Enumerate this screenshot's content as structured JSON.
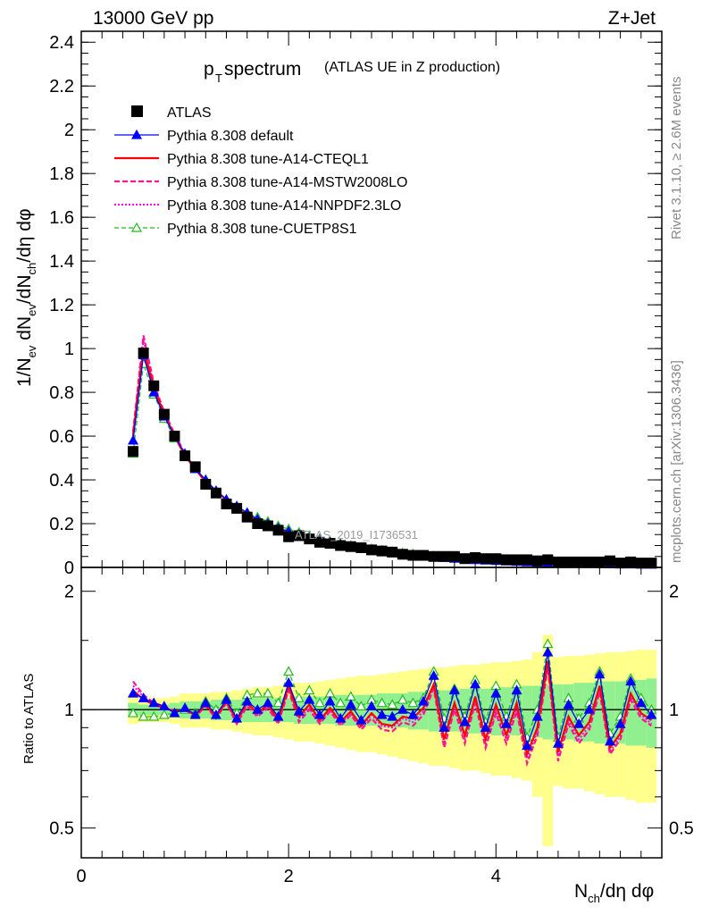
{
  "header": {
    "left": "13000 GeV pp",
    "right": "Z+Jet"
  },
  "title": {
    "main": "p",
    "main_sub": "T",
    "main_rest": " spectrum",
    "paren": "(ATLAS UE in Z production)"
  },
  "side_labels": {
    "rivet": "Rivet 3.1.10, ≥ 2.6M events",
    "mcplots": "mcplots.cern.ch [arXiv:1306.3436]"
  },
  "watermark": "ATLAS_2019_I1736531",
  "axes": {
    "main_ylabel": "1/N_ev dN_ev/dN_ch/dη dφ",
    "ratio_ylabel": "Ratio to ATLAS",
    "xlabel": "N_ch/dη dφ"
  },
  "legend": [
    {
      "label": "ATLAS",
      "color": "#000000",
      "style": "data"
    },
    {
      "label": "Pythia 8.308 default",
      "color": "#0000ff",
      "style": "solid-triangle"
    },
    {
      "label": "Pythia 8.308 tune-A14-CTEQL1",
      "color": "#ff0000",
      "style": "solid-thick"
    },
    {
      "label": "Pythia 8.308 tune-A14-MSTW2008LO",
      "color": "#ff1493",
      "style": "dashed"
    },
    {
      "label": "Pythia 8.308 tune-A14-NNPDF2.3LO",
      "color": "#ff00ff",
      "style": "dotted"
    },
    {
      "label": "Pythia 8.308 tune-CUETP8S1",
      "color": "#22bb22",
      "style": "dashed-open-triangle"
    }
  ],
  "chart_data": {
    "type": "line",
    "x": [
      0.5,
      0.6,
      0.7,
      0.8,
      0.9,
      1.0,
      1.1,
      1.2,
      1.3,
      1.4,
      1.5,
      1.6,
      1.7,
      1.8,
      1.9,
      2.0,
      2.1,
      2.2,
      2.3,
      2.4,
      2.5,
      2.6,
      2.7,
      2.8,
      2.9,
      3.0,
      3.1,
      3.2,
      3.3,
      3.4,
      3.5,
      3.6,
      3.7,
      3.8,
      3.9,
      4.0,
      4.1,
      4.2,
      4.3,
      4.4,
      4.5,
      4.6,
      4.7,
      4.8,
      4.9,
      5.0,
      5.1,
      5.2,
      5.3,
      5.4,
      5.5
    ],
    "xlim": [
      0,
      5.6
    ],
    "main": {
      "ylim": [
        0,
        2.45
      ],
      "yticks": [
        "0",
        "0.2",
        "0.4",
        "0.6",
        "0.8",
        "1",
        "1.2",
        "1.4",
        "1.6",
        "1.8",
        "2",
        "2.2",
        "2.4"
      ],
      "ytick_values": [
        0,
        0.2,
        0.4,
        0.6,
        0.8,
        1,
        1.2,
        1.4,
        1.6,
        1.8,
        2,
        2.2,
        2.4
      ],
      "data": [
        0.53,
        0.98,
        0.83,
        0.7,
        0.6,
        0.51,
        0.46,
        0.38,
        0.34,
        0.29,
        0.27,
        0.23,
        0.2,
        0.19,
        0.17,
        0.14,
        0.145,
        0.13,
        0.115,
        0.11,
        0.1,
        0.095,
        0.09,
        0.08,
        0.075,
        0.07,
        0.06,
        0.055,
        0.055,
        0.05,
        0.05,
        0.05,
        0.04,
        0.045,
        0.04,
        0.04,
        0.035,
        0.035,
        0.035,
        0.03,
        0.035,
        0.025,
        0.025,
        0.025,
        0.025,
        0.025,
        0.03,
        0.02,
        0.025,
        0.02,
        0.02
      ],
      "default": [
        0.58,
        0.97,
        0.8,
        0.69,
        0.6,
        0.52,
        0.45,
        0.4,
        0.35,
        0.31,
        0.28,
        0.25,
        0.22,
        0.2,
        0.18,
        0.165,
        0.15,
        0.135,
        0.125,
        0.115,
        0.105,
        0.095,
        0.087,
        0.08,
        0.073,
        0.067,
        0.061,
        0.056,
        0.052,
        0.048,
        0.044,
        0.04,
        0.037,
        0.034,
        0.032,
        0.03,
        0.028,
        0.026,
        0.024,
        0.022,
        0.021,
        0.02,
        0.019,
        0.018,
        0.017,
        0.016,
        0.015,
        0.014,
        0.014,
        0.013,
        0.013
      ],
      "a14_cteql1": [
        0.6,
        1.0,
        0.82,
        0.7,
        0.6,
        0.51,
        0.45,
        0.39,
        0.35,
        0.31,
        0.27,
        0.24,
        0.22,
        0.2,
        0.18,
        0.16,
        0.145,
        0.13,
        0.12,
        0.11,
        0.1,
        0.092,
        0.084,
        0.077,
        0.07,
        0.064,
        0.059,
        0.054,
        0.05,
        0.046,
        0.042,
        0.039,
        0.036,
        0.033,
        0.031,
        0.029,
        0.027,
        0.025,
        0.023,
        0.021,
        0.02,
        0.019,
        0.018,
        0.017,
        0.016,
        0.015,
        0.014,
        0.013,
        0.013,
        0.012,
        0.012
      ],
      "a14_mstw2008lo": [
        0.62,
        1.06,
        0.84,
        0.71,
        0.61,
        0.52,
        0.45,
        0.39,
        0.34,
        0.3,
        0.27,
        0.24,
        0.21,
        0.19,
        0.17,
        0.155,
        0.14,
        0.125,
        0.115,
        0.105,
        0.096,
        0.088,
        0.08,
        0.073,
        0.067,
        0.061,
        0.056,
        0.051,
        0.047,
        0.043,
        0.04,
        0.037,
        0.034,
        0.031,
        0.029,
        0.027,
        0.025,
        0.023,
        0.022,
        0.02,
        0.019,
        0.018,
        0.017,
        0.016,
        0.015,
        0.014,
        0.013,
        0.012,
        0.012,
        0.011,
        0.011
      ],
      "a14_nnpdf23lo": [
        0.61,
        1.04,
        0.83,
        0.7,
        0.6,
        0.52,
        0.45,
        0.39,
        0.35,
        0.3,
        0.27,
        0.24,
        0.21,
        0.19,
        0.17,
        0.158,
        0.142,
        0.128,
        0.117,
        0.107,
        0.098,
        0.09,
        0.082,
        0.075,
        0.069,
        0.063,
        0.058,
        0.053,
        0.049,
        0.045,
        0.041,
        0.038,
        0.035,
        0.032,
        0.03,
        0.028,
        0.026,
        0.024,
        0.022,
        0.021,
        0.02,
        0.019,
        0.018,
        0.017,
        0.016,
        0.015,
        0.014,
        0.013,
        0.013,
        0.012,
        0.012
      ],
      "cuetp8s1": [
        0.52,
        0.93,
        0.79,
        0.68,
        0.59,
        0.51,
        0.45,
        0.4,
        0.35,
        0.31,
        0.28,
        0.25,
        0.23,
        0.21,
        0.19,
        0.175,
        0.16,
        0.145,
        0.132,
        0.12,
        0.11,
        0.1,
        0.092,
        0.085,
        0.078,
        0.072,
        0.066,
        0.061,
        0.056,
        0.052,
        0.048,
        0.044,
        0.041,
        0.038,
        0.035,
        0.033,
        0.031,
        0.029,
        0.027,
        0.025,
        0.023,
        0.022,
        0.021,
        0.02,
        0.019,
        0.018,
        0.017,
        0.016,
        0.015,
        0.015,
        0.014
      ]
    },
    "ratio": {
      "ylim": [
        0.42,
        2.3
      ],
      "log": true,
      "yticks": [
        "0.5",
        "1",
        "2"
      ],
      "ytick_values": [
        0.5,
        1,
        2
      ],
      "band_stat": [
        0.04,
        0.03,
        0.03,
        0.03,
        0.04,
        0.05,
        0.05,
        0.05,
        0.06,
        0.06,
        0.06,
        0.07,
        0.07,
        0.07,
        0.07,
        0.07,
        0.08,
        0.08,
        0.08,
        0.08,
        0.09,
        0.09,
        0.09,
        0.09,
        0.1,
        0.1,
        0.1,
        0.11,
        0.11,
        0.12,
        0.12,
        0.12,
        0.13,
        0.13,
        0.13,
        0.14,
        0.14,
        0.14,
        0.15,
        0.15,
        0.16,
        0.16,
        0.16,
        0.17,
        0.17,
        0.18,
        0.18,
        0.18,
        0.19,
        0.19,
        0.2
      ],
      "band_total": [
        0.08,
        0.07,
        0.07,
        0.07,
        0.08,
        0.1,
        0.1,
        0.1,
        0.11,
        0.11,
        0.12,
        0.13,
        0.14,
        0.14,
        0.15,
        0.16,
        0.17,
        0.17,
        0.18,
        0.19,
        0.2,
        0.21,
        0.22,
        0.22,
        0.23,
        0.24,
        0.25,
        0.26,
        0.27,
        0.28,
        0.28,
        0.29,
        0.3,
        0.3,
        0.31,
        0.32,
        0.32,
        0.33,
        0.34,
        0.4,
        0.55,
        0.36,
        0.37,
        0.37,
        0.38,
        0.39,
        0.4,
        0.4,
        0.41,
        0.42,
        0.42
      ],
      "default": [
        1.1,
        1.07,
        1.04,
        1.02,
        0.98,
        1.01,
        0.97,
        1.04,
        0.97,
        1.06,
        0.95,
        1.05,
        1.0,
        1.04,
        0.96,
        1.17,
        0.99,
        1.06,
        0.97,
        1.05,
        0.95,
        1.03,
        0.94,
        1.02,
        0.97,
        0.96,
        1.0,
        0.97,
        1.05,
        1.22,
        0.9,
        1.12,
        0.93,
        1.16,
        0.9,
        1.1,
        0.92,
        1.12,
        0.81,
        0.96,
        1.4,
        0.82,
        1.03,
        0.92,
        1.0,
        1.23,
        0.83,
        0.92,
        1.18,
        1.04,
        0.97
      ],
      "a14_cteql1": [
        1.12,
        1.06,
        1.03,
        1.01,
        0.99,
        1.0,
        0.97,
        1.03,
        0.96,
        1.05,
        0.94,
        1.04,
        0.98,
        1.03,
        0.94,
        1.15,
        0.96,
        1.03,
        0.94,
        1.01,
        0.93,
        0.99,
        0.91,
        0.98,
        0.92,
        0.91,
        0.96,
        0.95,
        1.01,
        1.16,
        0.84,
        1.04,
        0.86,
        1.08,
        0.84,
        1.03,
        0.86,
        1.04,
        0.77,
        0.9,
        1.33,
        0.78,
        0.96,
        0.86,
        0.93,
        1.15,
        0.8,
        0.87,
        1.1,
        0.98,
        0.94
      ],
      "a14_mstw2008lo": [
        1.18,
        1.09,
        1.04,
        1.02,
        0.99,
        1.0,
        0.96,
        1.02,
        0.95,
        1.04,
        0.92,
        1.02,
        0.96,
        1.01,
        0.92,
        1.12,
        0.93,
        1.0,
        0.92,
        0.99,
        0.91,
        0.97,
        0.89,
        0.95,
        0.89,
        0.88,
        0.93,
        0.91,
        0.97,
        1.13,
        0.8,
        1.0,
        0.82,
        1.04,
        0.8,
        0.98,
        0.82,
        0.99,
        0.73,
        0.86,
        1.28,
        0.74,
        0.92,
        0.82,
        0.89,
        1.11,
        0.77,
        0.84,
        1.06,
        0.95,
        0.91
      ],
      "a14_nnpdf23lo": [
        1.15,
        1.08,
        1.03,
        1.01,
        0.99,
        1.0,
        0.97,
        1.03,
        0.96,
        1.04,
        0.93,
        1.03,
        0.97,
        1.02,
        0.93,
        1.13,
        0.95,
        1.01,
        0.93,
        1.0,
        0.92,
        0.98,
        0.9,
        0.97,
        0.91,
        0.9,
        0.95,
        0.93,
        0.99,
        1.15,
        0.82,
        1.02,
        0.84,
        1.06,
        0.82,
        1.0,
        0.84,
        1.01,
        0.75,
        0.88,
        1.3,
        0.76,
        0.94,
        0.84,
        0.91,
        1.13,
        0.78,
        0.86,
        1.08,
        0.97,
        0.92
      ],
      "cuetp8s1": [
        0.98,
        0.96,
        0.96,
        0.97,
        0.98,
        1.0,
        0.98,
        1.05,
        1.0,
        1.07,
        0.98,
        1.09,
        1.1,
        1.1,
        1.04,
        1.25,
        1.07,
        1.12,
        1.04,
        1.1,
        1.04,
        1.08,
        1.02,
        1.06,
        1.04,
        1.03,
        1.06,
        1.04,
        1.07,
        1.25,
        0.95,
        1.13,
        0.96,
        1.19,
        0.93,
        1.15,
        0.96,
        1.16,
        0.85,
        1.0,
        1.47,
        0.85,
        1.07,
        0.95,
        1.04,
        1.25,
        0.87,
        0.96,
        1.2,
        1.07,
        1.0
      ]
    },
    "xticks": [
      "0",
      "2",
      "4"
    ],
    "xtick_values": [
      0,
      2,
      4
    ]
  }
}
